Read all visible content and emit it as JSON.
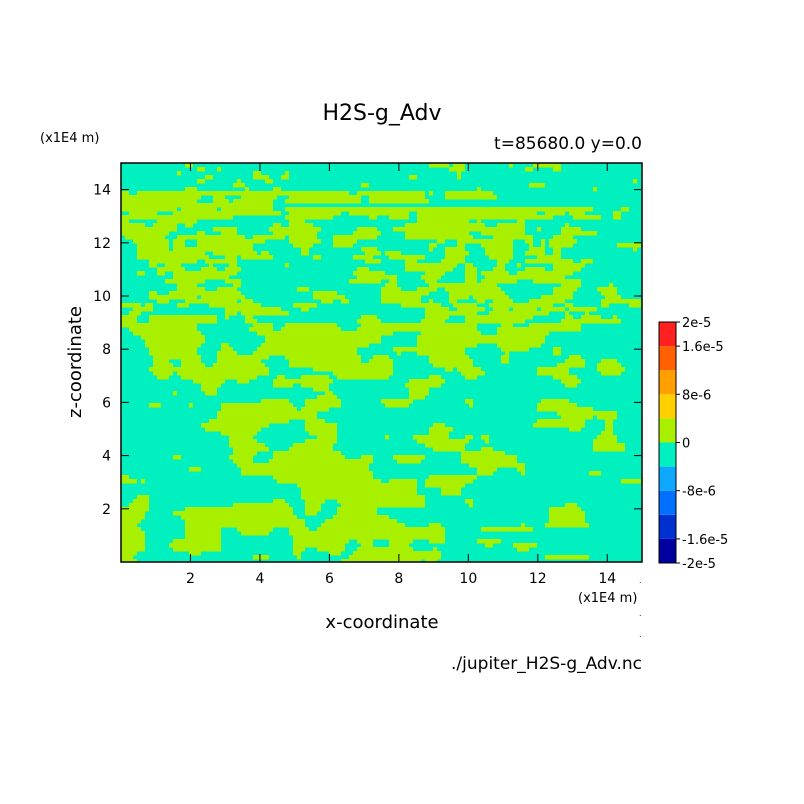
{
  "title": "H2S-g_Adv",
  "subtitle": "t=85680.0 y=0.0",
  "source_file": "./jupiter_H2S-g_Adv.nc",
  "chart_data": {
    "type": "heatmap",
    "title": "H2S-g_Adv",
    "subtitle": "t=85680.0 y=0.0",
    "xlabel": "x-coordinate",
    "ylabel": "z-coordinate",
    "x_unit": "(x1E4 m)",
    "y_unit": "(x1E4 m)",
    "xlim": [
      0,
      15
    ],
    "ylim": [
      0,
      15
    ],
    "x_ticks": [
      "2",
      "4",
      "6",
      "8",
      "10",
      "12",
      "14"
    ],
    "y_ticks": [
      "2",
      "4",
      "6",
      "8",
      "10",
      "12",
      "14"
    ],
    "x_tick_values": [
      2,
      4,
      6,
      8,
      10,
      12,
      14
    ],
    "y_tick_values": [
      2,
      4,
      6,
      8,
      10,
      12,
      14
    ],
    "colorbar": {
      "levels": [
        -2e-05,
        -1.6e-05,
        -1.2e-05,
        -8e-06,
        -4e-06,
        0,
        4e-06,
        8e-06,
        1.2e-05,
        1.6e-05,
        2e-05
      ],
      "colors": [
        "#0000a0",
        "#0030d0",
        "#0070ff",
        "#10a8ff",
        "#00f0c0",
        "#a8f000",
        "#ffd000",
        "#ffa000",
        "#ff6000",
        "#ff2020"
      ],
      "labels": [
        "-2e-5",
        "-1.6e-5",
        "-8e-6",
        "0",
        "8e-6",
        "1.6e-5",
        "2e-5"
      ],
      "label_values": [
        -2e-05,
        -1.6e-05,
        -8e-06,
        0,
        8e-06,
        1.6e-05,
        2e-05
      ]
    },
    "colors": {
      "negative_field": "#00f0c0",
      "positive_field": "#a8f000"
    },
    "note_regions": "field values near zero; alternating slightly-positive (green-yellow) and slightly-negative (cyan) patches"
  }
}
